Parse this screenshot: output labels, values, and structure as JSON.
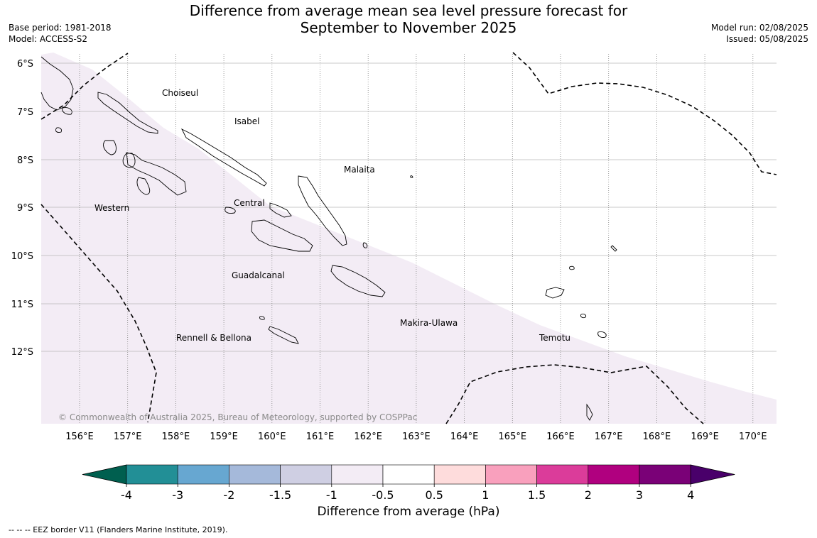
{
  "header": {
    "title_line1": "Difference from average mean sea level pressure forecast for",
    "title_line2": "September to November 2025",
    "base_period": "Base period: 1981-2018",
    "model": "Model: ACCESS-S2",
    "model_run": "Model run: 02/08/2025",
    "issued": "Issued: 05/08/2025"
  },
  "map": {
    "lat_labels": [
      "6°S",
      "7°S",
      "8°S",
      "9°S",
      "10°S",
      "11°S",
      "12°S"
    ],
    "lon_labels": [
      "156°E",
      "157°E",
      "158°E",
      "159°E",
      "160°E",
      "161°E",
      "162°E",
      "163°E",
      "164°E",
      "165°E",
      "166°E",
      "167°E",
      "168°E",
      "169°E",
      "170°E"
    ],
    "regions": [
      "Choiseul",
      "Isabel",
      "Malaita",
      "Western",
      "Central",
      "Guadalcanal",
      "Makira-Ulawa",
      "Rennell & Bellona",
      "Temotu"
    ],
    "copyright": "© Commonwealth of Australia 2025, Bureau of Meteorology, supported by COSPPac",
    "shaded_category": "-1 to -0.5",
    "shaded_color": "#f3ecf5"
  },
  "colorbar": {
    "ticks": [
      "-4",
      "-3",
      "-2",
      "-1.5",
      "-1",
      "-0.5",
      "0.5",
      "1",
      "1.5",
      "2",
      "3",
      "4"
    ],
    "colors": [
      "#005f4f",
      "#228f96",
      "#67a7d1",
      "#a5b9da",
      "#cfcfe3",
      "#f3ecf5",
      "#ffffff",
      "#fedcdc",
      "#f9a0bd",
      "#db3c9a",
      "#b0007f",
      "#7a0177",
      "#49006a"
    ],
    "label": "Difference from average (hPa)"
  },
  "legend": {
    "eez": "--  --  -- EEZ border V11 (Flanders Marine Institute, 2019)."
  }
}
